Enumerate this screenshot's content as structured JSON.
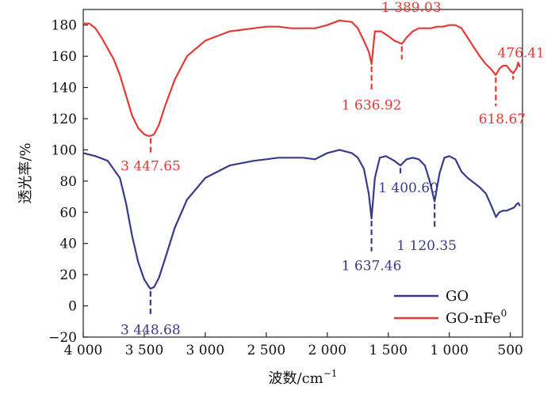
{
  "chart_data": {
    "type": "line",
    "title": "",
    "xlabel": "波数/cm",
    "xlabel_sup": "−1",
    "ylabel": "透光率/%",
    "xlim": [
      4000,
      400
    ],
    "ylim": [
      -20,
      190
    ],
    "x_reversed": true,
    "x_ticks": [
      4000,
      3500,
      3000,
      2500,
      2000,
      1500,
      1000,
      500
    ],
    "x_tick_labels": [
      "4 000",
      "3 500",
      "3 000",
      "2 500",
      "2 000",
      "1 500",
      "1 000",
      "500"
    ],
    "y_ticks": [
      -20,
      0,
      20,
      40,
      60,
      80,
      100,
      120,
      140,
      160,
      180
    ],
    "y_tick_labels": [
      "−20",
      "0",
      "20",
      "40",
      "60",
      "80",
      "100",
      "120",
      "140",
      "160",
      "180"
    ],
    "grid": false,
    "legend_position": "bottom-right",
    "series": [
      {
        "name": "GO",
        "color": "#3a3a8c",
        "x": [
          4000,
          3900,
          3800,
          3700,
          3650,
          3600,
          3550,
          3500,
          3460,
          3448.68,
          3420,
          3380,
          3330,
          3250,
          3150,
          3000,
          2800,
          2600,
          2500,
          2400,
          2200,
          2100,
          2000,
          1900,
          1800,
          1750,
          1700,
          1660,
          1637.46,
          1610,
          1570,
          1520,
          1450,
          1400.6,
          1350,
          1300,
          1250,
          1200,
          1160,
          1120.35,
          1080,
          1040,
          1000,
          950,
          900,
          850,
          800,
          750,
          700,
          660,
          618,
          590,
          560,
          530,
          500,
          470,
          450,
          435,
          420
        ],
        "y": [
          98,
          96,
          93,
          82,
          66,
          45,
          28,
          17,
          12,
          11,
          12,
          18,
          30,
          50,
          68,
          82,
          90,
          93,
          94,
          95,
          95,
          94,
          98,
          100,
          98,
          95,
          88,
          72,
          56,
          82,
          95,
          96,
          93,
          90,
          94,
          95,
          94,
          90,
          80,
          67,
          85,
          95,
          96,
          94,
          86,
          82,
          79,
          76,
          72,
          65,
          57,
          60,
          61,
          61,
          62,
          63,
          65,
          66,
          64
        ]
      },
      {
        "name": "GO-nFe",
        "name_sup": "0",
        "color": "#e53935",
        "x": [
          4000,
          3950,
          3900,
          3850,
          3800,
          3750,
          3700,
          3650,
          3600,
          3550,
          3500,
          3470,
          3447.65,
          3420,
          3380,
          3330,
          3250,
          3150,
          3000,
          2800,
          2600,
          2500,
          2400,
          2300,
          2200,
          2100,
          2000,
          1900,
          1800,
          1750,
          1700,
          1660,
          1636.92,
          1610,
          1560,
          1500,
          1450,
          1389.03,
          1350,
          1300,
          1250,
          1200,
          1150,
          1100,
          1050,
          1000,
          950,
          900,
          850,
          800,
          750,
          700,
          660,
          618.67,
          590,
          560,
          530,
          500,
          476.41,
          450,
          435,
          420
        ],
        "y": [
          181,
          181,
          178,
          172,
          165,
          158,
          148,
          135,
          122,
          114,
          110,
          109,
          109,
          110,
          116,
          128,
          145,
          160,
          170,
          176,
          178,
          179,
          179,
          178,
          178,
          178,
          180,
          183,
          182,
          178,
          170,
          163,
          155,
          176,
          176,
          173,
          170,
          168,
          172,
          176,
          178,
          178,
          178,
          179,
          179,
          180,
          180,
          178,
          172,
          166,
          160,
          155,
          152,
          148,
          152,
          154,
          154,
          151,
          149,
          152,
          156,
          153
        ]
      }
    ],
    "annotations": [
      {
        "series": "GO-nFe",
        "label": "3 447.65",
        "x": 3447.65,
        "y_top": 109,
        "y_bottom": 98
      },
      {
        "series": "GO-nFe",
        "label": "1 636.92",
        "x": 1636.92,
        "y_top": 155,
        "y_bottom": 137
      },
      {
        "series": "GO-nFe",
        "label": "1 389.03",
        "x": 1389.03,
        "y_top": 168,
        "y_bottom": 158
      },
      {
        "series": "GO-nFe",
        "label": "618.67",
        "x": 618.67,
        "y_top": 148,
        "y_bottom": 128
      },
      {
        "series": "GO-nFe",
        "label": "476.41",
        "x": 476.41,
        "y_top": 149,
        "y_bottom": 145
      },
      {
        "series": "GO",
        "label": "3 448.68",
        "x": 3448.68,
        "y_top": 11,
        "y_bottom": -7
      },
      {
        "series": "GO",
        "label": "1 637.46",
        "x": 1637.46,
        "y_top": 56,
        "y_bottom": 35
      },
      {
        "series": "GO",
        "label": "1 400.60",
        "x": 1400.6,
        "y_top": 90,
        "y_bottom": 83
      },
      {
        "series": "GO",
        "label": "1 120.35",
        "x": 1120.35,
        "y_top": 67,
        "y_bottom": 49
      }
    ]
  }
}
